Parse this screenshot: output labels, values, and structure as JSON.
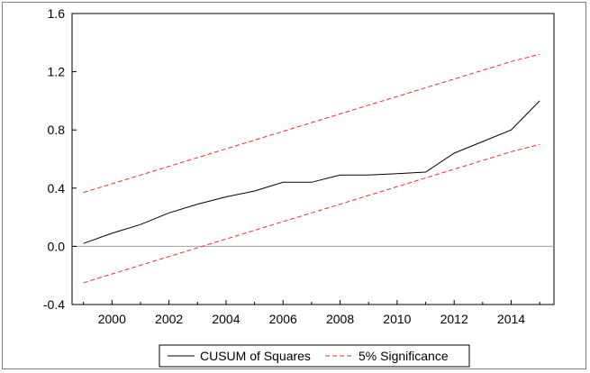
{
  "chart_data": {
    "type": "line",
    "title": "",
    "xlabel": "",
    "ylabel": "",
    "x": [
      1999,
      2000,
      2001,
      2002,
      2003,
      2004,
      2005,
      2006,
      2007,
      2008,
      2009,
      2010,
      2011,
      2012,
      2013,
      2014,
      2015
    ],
    "xlim": [
      1998.6,
      2015.5
    ],
    "ylim": [
      -0.4,
      1.6
    ],
    "x_ticks": [
      2000,
      2002,
      2004,
      2006,
      2008,
      2010,
      2012,
      2014
    ],
    "y_ticks": [
      -0.4,
      0.0,
      0.4,
      0.8,
      1.2,
      1.6
    ],
    "x_tick_labels": [
      "2000",
      "2002",
      "2004",
      "2006",
      "2008",
      "2010",
      "2012",
      "2014"
    ],
    "y_tick_labels": [
      "-0.4",
      "0.0",
      "0.4",
      "0.8",
      "1.2",
      "1.6"
    ],
    "zero_line": true,
    "grid": false,
    "legend_position": "bottom",
    "series": [
      {
        "name": "CUSUM of Squares",
        "style": "solid",
        "color": "#000000",
        "values": [
          0.02,
          0.09,
          0.15,
          0.23,
          0.29,
          0.34,
          0.38,
          0.44,
          0.44,
          0.49,
          0.49,
          0.5,
          0.51,
          0.64,
          0.72,
          0.8,
          1.0
        ]
      },
      {
        "name": "5% Significance",
        "style": "dashed",
        "color": "#e8302a",
        "values": [
          0.37,
          0.43,
          0.49,
          0.55,
          0.61,
          0.67,
          0.73,
          0.79,
          0.85,
          0.91,
          0.97,
          1.03,
          1.09,
          1.15,
          1.21,
          1.27,
          1.32
        ],
        "lower_values": [
          -0.25,
          -0.19,
          -0.13,
          -0.07,
          -0.01,
          0.05,
          0.11,
          0.17,
          0.23,
          0.29,
          0.35,
          0.41,
          0.47,
          0.53,
          0.59,
          0.65,
          0.7
        ]
      }
    ]
  }
}
